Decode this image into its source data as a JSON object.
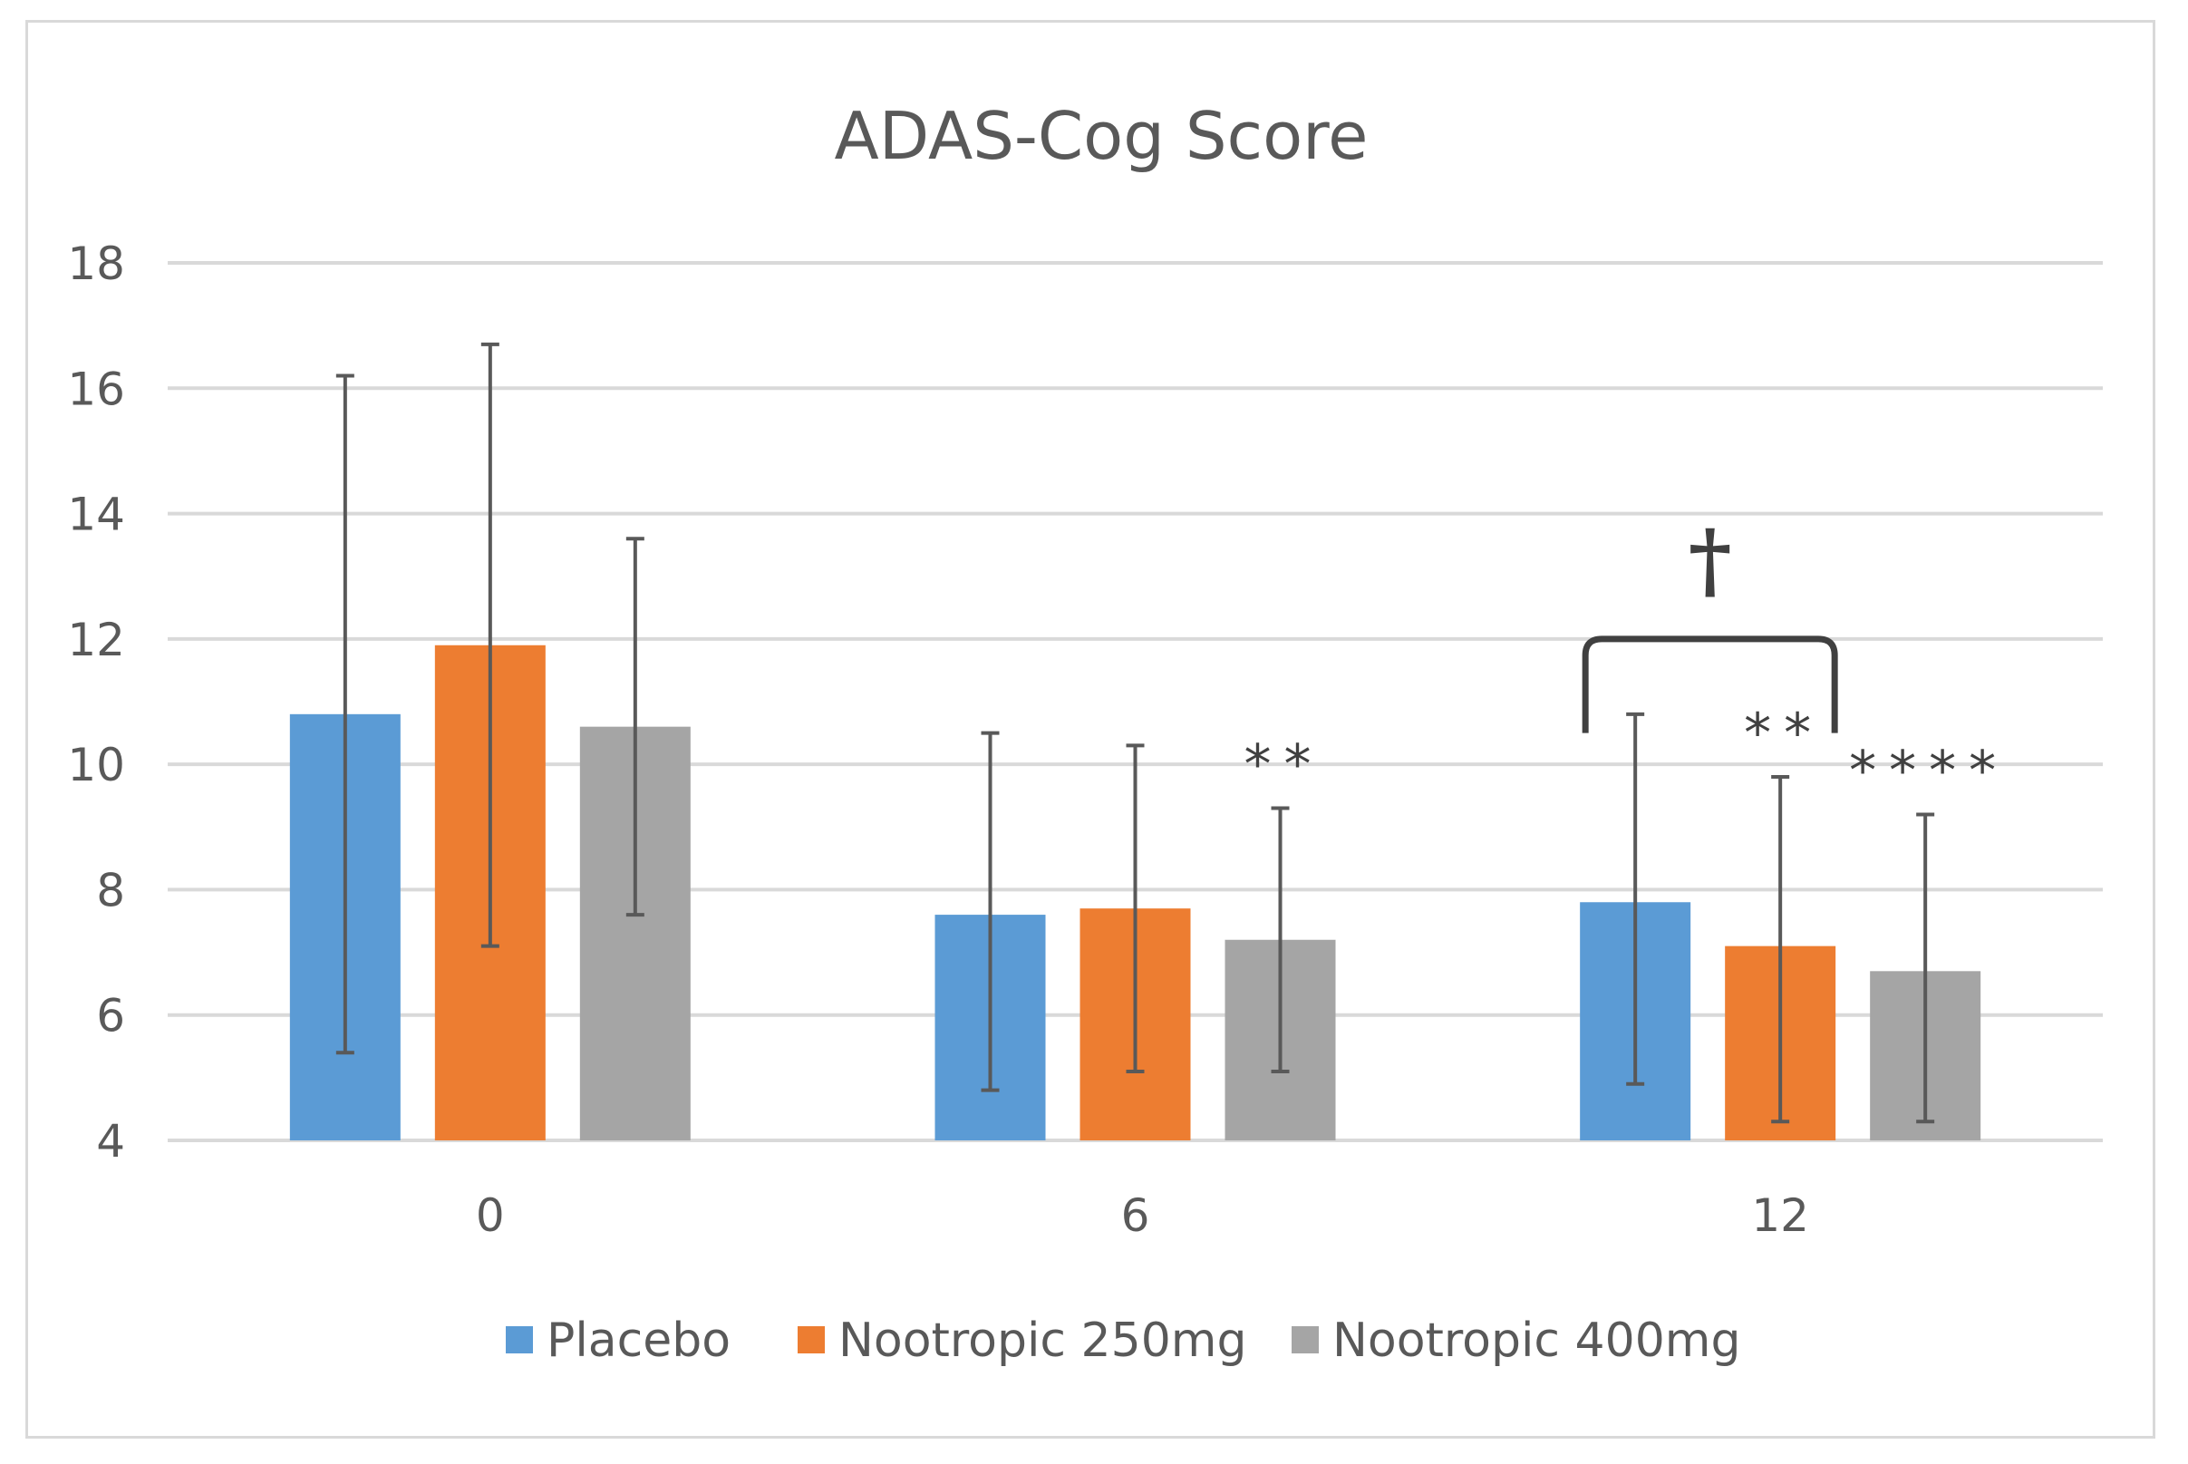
{
  "chart_data": {
    "type": "bar",
    "title": "ADAS-Cog Score",
    "xlabel": "",
    "ylabel": "",
    "categories": [
      "0",
      "6",
      "12"
    ],
    "ylim": [
      4,
      18
    ],
    "yticks": [
      4,
      6,
      8,
      10,
      12,
      14,
      16,
      18
    ],
    "grid": true,
    "legend_position": "bottom",
    "series": [
      {
        "name": "Placebo",
        "color": "#5b9bd5",
        "values": [
          10.8,
          7.6,
          7.8
        ],
        "error_low": [
          5.4,
          4.8,
          4.9
        ],
        "error_high": [
          16.2,
          10.5,
          10.8
        ]
      },
      {
        "name": "Nootropic 250mg",
        "color": "#ed7d31",
        "values": [
          11.9,
          7.7,
          7.1
        ],
        "error_low": [
          7.1,
          5.1,
          4.3
        ],
        "error_high": [
          16.7,
          10.3,
          9.8
        ]
      },
      {
        "name": "Nootropic 400mg",
        "color": "#a5a5a5",
        "values": [
          10.6,
          7.2,
          6.7
        ],
        "error_low": [
          7.6,
          5.1,
          4.3
        ],
        "error_high": [
          13.6,
          9.3,
          9.2
        ]
      }
    ],
    "annotations": [
      {
        "text": "**",
        "category": "6",
        "series": "Nootropic 400mg"
      },
      {
        "text": "**",
        "category": "12",
        "series": "Nootropic 250mg"
      },
      {
        "text": "****",
        "category": "12",
        "series": "Nootropic 400mg"
      },
      {
        "text": "†",
        "category": "12",
        "bracket": [
          "Placebo",
          "Nootropic 400mg"
        ]
      }
    ]
  }
}
